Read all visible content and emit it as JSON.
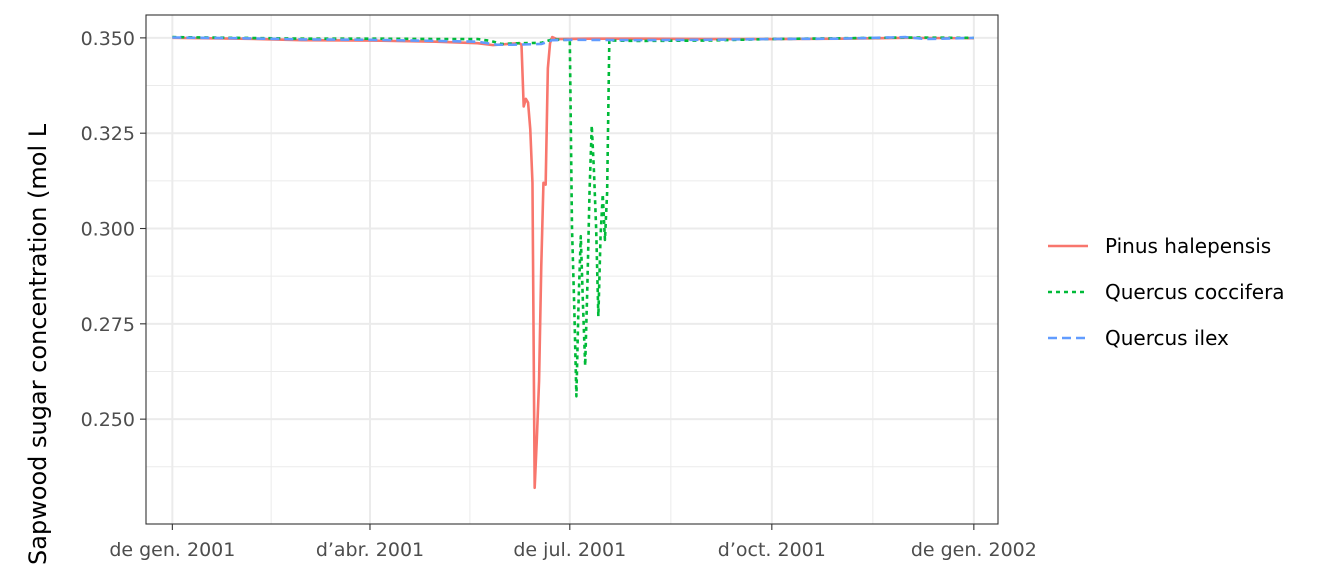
{
  "chart_data": {
    "type": "line",
    "title": "",
    "xlabel": "",
    "ylabel": "Sapwood sugar concentration  (mol  L",
    "x_range": [
      "2000-12-20",
      "2002-01-12"
    ],
    "ylim": [
      0.2225,
      0.356
    ],
    "grid": true,
    "legend_position": "right",
    "x_ticks": [
      {
        "date": "2001-01-01",
        "label": "de gen. 2001"
      },
      {
        "date": "2001-04-01",
        "label": "d’abr. 2001"
      },
      {
        "date": "2001-07-01",
        "label": "de jul. 2001"
      },
      {
        "date": "2001-10-01",
        "label": "d’oct. 2001"
      },
      {
        "date": "2002-01-01",
        "label": "de gen. 2002"
      }
    ],
    "y_ticks": [
      {
        "value": 0.25,
        "label": "0.250"
      },
      {
        "value": 0.275,
        "label": "0.275"
      },
      {
        "value": 0.3,
        "label": "0.300"
      },
      {
        "value": 0.325,
        "label": "0.325"
      },
      {
        "value": 0.35,
        "label": "0.350"
      }
    ],
    "series": [
      {
        "name": "Pinus halepensis",
        "color": "#F8766D",
        "dash": "solid",
        "points": [
          [
            "2001-01-01",
            0.35
          ],
          [
            "2001-02-01",
            0.3498
          ],
          [
            "2001-03-01",
            0.3494
          ],
          [
            "2001-04-01",
            0.3493
          ],
          [
            "2001-05-01",
            0.349
          ],
          [
            "2001-05-20",
            0.3486
          ],
          [
            "2001-05-27",
            0.3481
          ],
          [
            "2001-06-03",
            0.3484
          ],
          [
            "2001-06-08",
            0.3486
          ],
          [
            "2001-06-09",
            0.3482
          ],
          [
            "2001-06-10",
            0.332
          ],
          [
            "2001-06-11",
            0.334
          ],
          [
            "2001-06-12",
            0.333
          ],
          [
            "2001-06-13",
            0.326
          ],
          [
            "2001-06-14",
            0.312
          ],
          [
            "2001-06-15",
            0.232
          ],
          [
            "2001-06-16",
            0.245
          ],
          [
            "2001-06-17",
            0.26
          ],
          [
            "2001-06-18",
            0.29
          ],
          [
            "2001-06-19",
            0.312
          ],
          [
            "2001-06-20",
            0.3115
          ],
          [
            "2001-06-21",
            0.342
          ],
          [
            "2001-06-22",
            0.3486
          ],
          [
            "2001-06-23",
            0.3502
          ],
          [
            "2001-06-25",
            0.3497
          ],
          [
            "2001-07-10",
            0.3498
          ],
          [
            "2001-08-01",
            0.3498
          ],
          [
            "2001-09-01",
            0.3497
          ],
          [
            "2001-10-01",
            0.3497
          ],
          [
            "2001-11-01",
            0.3498
          ],
          [
            "2001-12-01",
            0.35
          ],
          [
            "2002-01-01",
            0.3499
          ]
        ]
      },
      {
        "name": "Quercus coccifera",
        "color": "#00BA38",
        "dash": "dotted",
        "points": [
          [
            "2001-01-01",
            0.3502
          ],
          [
            "2001-02-01",
            0.35
          ],
          [
            "2001-03-01",
            0.3498
          ],
          [
            "2001-04-01",
            0.3498
          ],
          [
            "2001-05-01",
            0.3497
          ],
          [
            "2001-05-20",
            0.3497
          ],
          [
            "2001-05-26",
            0.3492
          ],
          [
            "2001-05-31",
            0.3484
          ],
          [
            "2001-06-08",
            0.3486
          ],
          [
            "2001-06-18",
            0.3487
          ],
          [
            "2001-06-23",
            0.3496
          ],
          [
            "2001-06-28",
            0.3495
          ],
          [
            "2001-07-01",
            0.3495
          ],
          [
            "2001-07-02",
            0.3
          ],
          [
            "2001-07-03",
            0.28
          ],
          [
            "2001-07-04",
            0.256
          ],
          [
            "2001-07-05",
            0.281
          ],
          [
            "2001-07-06",
            0.298
          ],
          [
            "2001-07-07",
            0.28
          ],
          [
            "2001-07-08",
            0.264
          ],
          [
            "2001-07-09",
            0.285
          ],
          [
            "2001-07-10",
            0.31
          ],
          [
            "2001-07-11",
            0.327
          ],
          [
            "2001-07-12",
            0.315
          ],
          [
            "2001-07-13",
            0.3
          ],
          [
            "2001-07-14",
            0.277
          ],
          [
            "2001-07-15",
            0.298
          ],
          [
            "2001-07-16",
            0.309
          ],
          [
            "2001-07-17",
            0.297
          ],
          [
            "2001-07-18",
            0.3095
          ],
          [
            "2001-07-19",
            0.3496
          ],
          [
            "2001-07-20",
            0.3493
          ],
          [
            "2001-08-01",
            0.3492
          ],
          [
            "2001-09-01",
            0.3493
          ],
          [
            "2001-10-01",
            0.3497
          ],
          [
            "2001-11-01",
            0.3499
          ],
          [
            "2001-12-01",
            0.3501
          ],
          [
            "2002-01-01",
            0.35
          ]
        ]
      },
      {
        "name": "Quercus ilex",
        "color": "#619CFF",
        "dash": "dashed",
        "points": [
          [
            "2001-01-01",
            0.3501
          ],
          [
            "2001-02-01",
            0.3499
          ],
          [
            "2001-03-01",
            0.3496
          ],
          [
            "2001-04-01",
            0.3495
          ],
          [
            "2001-05-01",
            0.3492
          ],
          [
            "2001-05-20",
            0.349
          ],
          [
            "2001-05-29",
            0.3482
          ],
          [
            "2001-06-05",
            0.3482
          ],
          [
            "2001-06-18",
            0.3484
          ],
          [
            "2001-06-23",
            0.3494
          ],
          [
            "2001-07-01",
            0.3495
          ],
          [
            "2001-08-01",
            0.3494
          ],
          [
            "2001-09-01",
            0.3495
          ],
          [
            "2001-10-01",
            0.3497
          ],
          [
            "2001-11-01",
            0.3498
          ],
          [
            "2001-12-01",
            0.3502
          ],
          [
            "2001-12-10",
            0.3497
          ],
          [
            "2002-01-01",
            0.35
          ]
        ]
      }
    ]
  }
}
